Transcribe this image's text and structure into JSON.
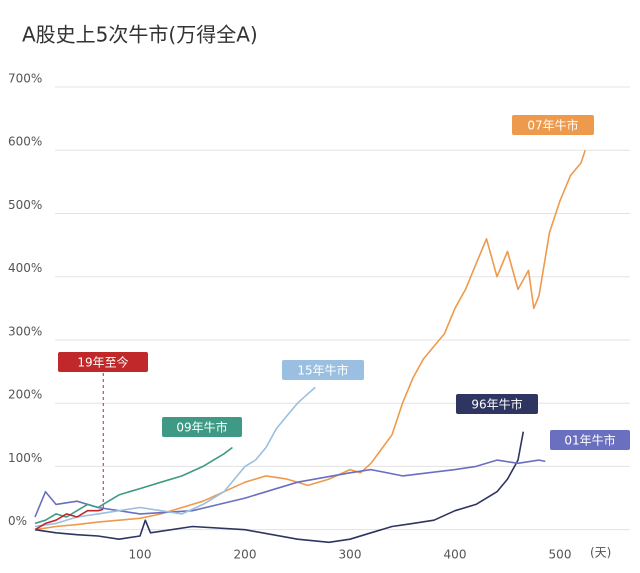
{
  "chart_data": {
    "type": "line",
    "title": "A股史上5次牛市(万得全A)",
    "x_label": "(天)",
    "xlim": [
      -20,
      560
    ],
    "xticks": [
      100,
      200,
      300,
      400,
      500
    ],
    "ylim": [
      -10,
      700
    ],
    "yticks": [
      {
        "value": 0,
        "label": "0%"
      },
      {
        "value": 100,
        "label": "100%"
      },
      {
        "value": 200,
        "label": "200%"
      },
      {
        "value": 300,
        "label": "300%"
      },
      {
        "value": 400,
        "label": "400%"
      },
      {
        "value": 500,
        "label": "500%"
      },
      {
        "value": 600,
        "label": "600%"
      },
      {
        "value": 700,
        "label": "700%"
      }
    ],
    "grid": true,
    "series": [
      {
        "name": "07年牛市",
        "color": "#ee9a4d",
        "x": [
          0,
          20,
          40,
          60,
          80,
          100,
          120,
          140,
          160,
          180,
          200,
          220,
          240,
          260,
          280,
          300,
          310,
          320,
          340,
          350,
          360,
          370,
          380,
          390,
          400,
          410,
          420,
          430,
          440,
          450,
          460,
          470,
          475,
          480,
          490,
          500,
          510,
          520,
          524
        ],
        "values": [
          0,
          5,
          8,
          12,
          15,
          18,
          25,
          35,
          45,
          60,
          75,
          85,
          80,
          70,
          80,
          95,
          90,
          105,
          150,
          200,
          240,
          270,
          290,
          310,
          350,
          380,
          420,
          460,
          400,
          440,
          380,
          410,
          350,
          370,
          470,
          520,
          560,
          580,
          600
        ]
      },
      {
        "name": "96年牛市",
        "color": "#2d3560",
        "x": [
          0,
          20,
          40,
          60,
          80,
          100,
          105,
          110,
          150,
          200,
          250,
          280,
          300,
          320,
          340,
          360,
          380,
          400,
          420,
          440,
          450,
          460,
          465
        ],
        "values": [
          0,
          -5,
          -8,
          -10,
          -15,
          -10,
          15,
          -5,
          5,
          0,
          -15,
          -20,
          -15,
          -5,
          5,
          10,
          15,
          30,
          40,
          60,
          80,
          110,
          155
        ]
      },
      {
        "name": "01年牛市",
        "color": "#6a6fc0",
        "x": [
          0,
          10,
          20,
          40,
          60,
          80,
          100,
          150,
          200,
          250,
          300,
          320,
          350,
          400,
          420,
          440,
          460,
          480,
          486
        ],
        "values": [
          20,
          60,
          40,
          45,
          35,
          30,
          25,
          30,
          50,
          75,
          90,
          95,
          85,
          95,
          100,
          110,
          105,
          110,
          108
        ]
      },
      {
        "name": "09年牛市",
        "color": "#3f9a85",
        "x": [
          0,
          10,
          20,
          30,
          40,
          50,
          60,
          70,
          80,
          90,
          100,
          120,
          140,
          160,
          170,
          180,
          188
        ],
        "values": [
          10,
          15,
          25,
          20,
          30,
          40,
          35,
          45,
          55,
          60,
          65,
          75,
          85,
          100,
          110,
          120,
          130
        ]
      },
      {
        "name": "15年牛市",
        "color": "#9bbfe0",
        "x": [
          0,
          20,
          40,
          60,
          80,
          100,
          120,
          140,
          160,
          180,
          200,
          210,
          220,
          230,
          240,
          250,
          260,
          267
        ],
        "values": [
          5,
          10,
          20,
          25,
          30,
          35,
          30,
          25,
          40,
          60,
          100,
          110,
          130,
          160,
          180,
          200,
          215,
          225
        ]
      },
      {
        "name": "19年至今",
        "color": "#c0282a",
        "x": [
          0,
          10,
          20,
          30,
          40,
          50,
          60,
          65
        ],
        "values": [
          0,
          10,
          15,
          25,
          20,
          30,
          30,
          32
        ]
      }
    ]
  }
}
